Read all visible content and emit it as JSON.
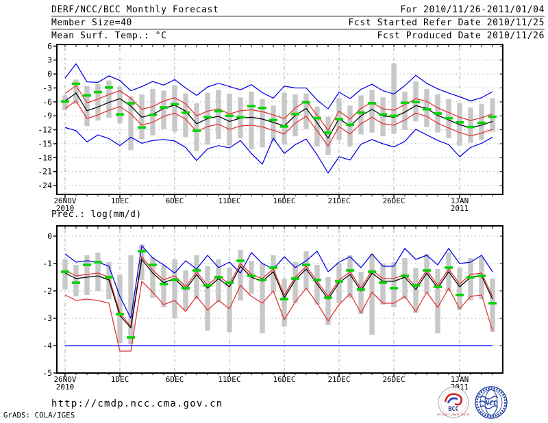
{
  "header": {
    "title": "DERF/NCC/BCC Monthly Forecast",
    "member_size": "Member Size=40",
    "temp_label": "Mean Surf. Temp.: °C",
    "valid_range": "For 2010/11/26-2011/01/04",
    "refer_date": "Fcst Started Refer Date 2010/11/25",
    "produced_date": "Fcst Produced Date 2010/11/26"
  },
  "footer": {
    "url": "http://cmdp.ncc.cma.gov.cn",
    "grads_credit": "GrADS: COLA/IGES",
    "bcc_label": "BCC",
    "bcc_ring_text": "BEIJING CLIMATE CENTER",
    "ncc_label": "NCC"
  },
  "colors": {
    "blue": "#0000e8",
    "red": "#e03030",
    "black": "#000000",
    "green": "#00d400",
    "bar_gray": "#c8c8c8",
    "grid_gray": "#aaaaaa",
    "frame": "#000000"
  },
  "chart_data": [
    {
      "type": "line",
      "title": "Mean Surf. Temp.: °C",
      "n_days": 40,
      "x_tick_labels": [
        "26NOV",
        "1DEC",
        "6DEC",
        "11DEC",
        "16DEC",
        "21DEC",
        "26DEC",
        "1JAN"
      ],
      "x_tick_days": [
        0,
        5,
        10,
        15,
        20,
        25,
        30,
        36
      ],
      "x_year_labels": [
        {
          "day": 0,
          "label": "2010"
        },
        {
          "day": 36,
          "label": "2011"
        }
      ],
      "yticks": [
        6,
        3,
        0,
        -3,
        -6,
        -9,
        -12,
        -15,
        -18,
        -21,
        -24
      ],
      "ylim": [
        -25.9,
        6.35
      ],
      "grid": "dotted",
      "legend": "none",
      "series": [
        {
          "name": "ensemble-max",
          "color": "blue",
          "values": [
            -0.9,
            2.2,
            -1.7,
            -1.8,
            -0.4,
            -1.4,
            -3.6,
            -2.7,
            -1.6,
            -2.4,
            -1.2,
            -3.0,
            -4.6,
            -2.8,
            -2.0,
            -2.7,
            -3.4,
            -2.3,
            -4.0,
            -5.2,
            -2.6,
            -3.0,
            -3.0,
            -5.6,
            -7.5,
            -3.9,
            -5.3,
            -3.3,
            -2.2,
            -3.6,
            -4.3,
            -2.5,
            -0.3,
            -2.0,
            -3.2,
            -4.1,
            -4.9,
            -5.8,
            -5.1,
            -3.8
          ]
        },
        {
          "name": "upper-spread",
          "color": "red",
          "values": [
            -4.2,
            -2.5,
            -6.2,
            -5.4,
            -4.4,
            -3.6,
            -5.2,
            -7.6,
            -7.0,
            -5.8,
            -5.1,
            -6.4,
            -9.0,
            -8.0,
            -7.5,
            -8.6,
            -7.9,
            -7.7,
            -8.1,
            -8.8,
            -9.6,
            -7.3,
            -5.8,
            -8.9,
            -12.1,
            -8.0,
            -9.7,
            -7.4,
            -6.1,
            -7.5,
            -7.8,
            -6.6,
            -5.3,
            -5.9,
            -7.3,
            -8.3,
            -9.3,
            -10.0,
            -9.4,
            -8.6
          ]
        },
        {
          "name": "ensemble-mean",
          "color": "black",
          "values": [
            -5.8,
            -4.1,
            -7.9,
            -7.1,
            -6.1,
            -5.3,
            -6.9,
            -9.3,
            -8.7,
            -7.4,
            -6.7,
            -8.0,
            -10.7,
            -9.6,
            -9.1,
            -10.2,
            -9.5,
            -9.3,
            -9.7,
            -10.4,
            -11.2,
            -8.9,
            -7.4,
            -10.5,
            -13.8,
            -9.6,
            -11.2,
            -9.0,
            -7.6,
            -9.0,
            -9.3,
            -8.2,
            -6.8,
            -7.4,
            -8.9,
            -9.9,
            -10.9,
            -11.6,
            -11.0,
            -10.2
          ]
        },
        {
          "name": "lower-spread",
          "color": "red",
          "values": [
            -7.4,
            -5.8,
            -9.6,
            -8.8,
            -7.8,
            -7.0,
            -8.6,
            -11.0,
            -10.4,
            -9.1,
            -8.4,
            -9.7,
            -12.4,
            -11.3,
            -10.8,
            -11.9,
            -11.2,
            -11.0,
            -11.4,
            -12.1,
            -12.9,
            -10.6,
            -9.1,
            -12.2,
            -15.5,
            -11.3,
            -12.9,
            -10.7,
            -9.3,
            -10.7,
            -11.0,
            -9.9,
            -8.4,
            -9.1,
            -10.6,
            -11.6,
            -12.6,
            -13.3,
            -12.7,
            -11.9
          ]
        },
        {
          "name": "ensemble-min",
          "color": "blue",
          "values": [
            -11.5,
            -12.2,
            -14.6,
            -13.1,
            -13.9,
            -15.4,
            -13.6,
            -14.9,
            -14.3,
            -14.1,
            -14.4,
            -15.8,
            -18.6,
            -16.1,
            -15.4,
            -15.9,
            -14.3,
            -17.1,
            -19.4,
            -13.8,
            -17.1,
            -15.2,
            -14.0,
            -17.4,
            -21.3,
            -17.8,
            -18.5,
            -15.1,
            -14.1,
            -15.0,
            -15.7,
            -14.5,
            -11.9,
            -13.1,
            -14.3,
            -15.2,
            -17.8,
            -15.8,
            -14.9,
            -13.6
          ]
        }
      ],
      "bars": {
        "name": "member-spread-bar",
        "color": "bar_gray",
        "top": [
          -4.6,
          -1.2,
          -2.6,
          -2.2,
          -1.4,
          -2.7,
          -4.8,
          -4.4,
          -3.2,
          -3.6,
          -2.4,
          -4.2,
          -6.3,
          -4.1,
          -3.4,
          -4.2,
          -5.0,
          -3.8,
          -5.4,
          -6.8,
          -4.0,
          -4.4,
          -4.2,
          -7.0,
          -9.2,
          -5.2,
          -6.8,
          -4.6,
          -3.4,
          -5.0,
          2.3,
          -3.8,
          -1.6,
          -3.2,
          -4.4,
          -5.4,
          -6.2,
          -7.2,
          -6.4,
          -5.2
        ],
        "bottom": [
          -7.8,
          -6.4,
          -11.2,
          -10.0,
          -9.4,
          -10.6,
          -16.4,
          -14.0,
          -13.2,
          -11.8,
          -12.4,
          -13.6,
          -16.6,
          -15.2,
          -14.0,
          -15.4,
          -13.8,
          -16.2,
          -15.8,
          -14.6,
          -15.2,
          -13.4,
          -11.8,
          -15.6,
          -17.4,
          -14.2,
          -15.6,
          -13.0,
          -12.6,
          -13.4,
          -12.8,
          -12.0,
          -10.2,
          -11.4,
          -12.6,
          -13.8,
          -15.4,
          -14.8,
          -14.2,
          -12.4
        ]
      },
      "observation": {
        "name": "observation-dash",
        "color": "green",
        "values": [
          -5.9,
          -2.1,
          -4.6,
          -3.9,
          -2.9,
          -8.7,
          -6.3,
          -11.5,
          -8.8,
          -7.2,
          -6.5,
          -8.3,
          -12.2,
          -9.3,
          -8.0,
          -9.0,
          -9.3,
          -6.9,
          -7.3,
          -9.9,
          -11.3,
          -8.6,
          -6.1,
          -9.5,
          -12.6,
          -9.7,
          -10.9,
          -8.3,
          -6.3,
          -8.7,
          -9.0,
          -6.2,
          -6.0,
          -7.6,
          -8.5,
          -9.5,
          -10.4,
          -11.4,
          -10.5,
          -9.2
        ]
      }
    },
    {
      "type": "line",
      "title": "Prec.: log(mm/d)",
      "n_days": 40,
      "x_tick_labels": [
        "26NOV",
        "1DEC",
        "6DEC",
        "11DEC",
        "16DEC",
        "21DEC",
        "26DEC",
        "1JAN"
      ],
      "x_tick_days": [
        0,
        5,
        10,
        15,
        20,
        25,
        30,
        36
      ],
      "x_year_labels": [
        {
          "day": 0,
          "label": "2010"
        },
        {
          "day": 36,
          "label": "2011"
        }
      ],
      "yticks": [
        0,
        -1,
        -2,
        -3,
        -4,
        -5
      ],
      "ylim": [
        -5.0,
        0.375
      ],
      "grid": "dotted",
      "legend": "none",
      "series": [
        {
          "name": "ensemble-max",
          "color": "blue",
          "values": [
            -0.65,
            -0.95,
            -0.9,
            -0.95,
            -1.1,
            -2.2,
            -3.0,
            -0.35,
            -0.8,
            -1.05,
            -1.35,
            -0.9,
            -1.2,
            -0.7,
            -1.15,
            -0.95,
            -1.35,
            -0.6,
            -1.0,
            -1.2,
            -0.75,
            -1.15,
            -0.9,
            -0.55,
            -1.3,
            -0.95,
            -0.75,
            -1.15,
            -0.65,
            -1.1,
            -1.1,
            -0.45,
            -0.85,
            -0.7,
            -1.05,
            -0.45,
            -1.0,
            -0.95,
            -0.7,
            -1.3
          ]
        },
        {
          "name": "upper-spread",
          "color": "red",
          "values": [
            -1.25,
            -1.45,
            -1.4,
            -1.35,
            -1.5,
            -2.8,
            -3.3,
            -0.75,
            -1.25,
            -1.6,
            -1.45,
            -1.85,
            -1.3,
            -1.8,
            -1.45,
            -1.75,
            -1.0,
            -1.4,
            -1.55,
            -1.2,
            -2.15,
            -1.5,
            -1.1,
            -1.65,
            -2.2,
            -1.6,
            -1.3,
            -1.9,
            -1.25,
            -1.55,
            -1.55,
            -1.4,
            -1.85,
            -1.25,
            -1.8,
            -1.2,
            -1.75,
            -1.4,
            -1.35,
            -2.2
          ]
        },
        {
          "name": "ensemble-mean",
          "color": "black",
          "values": [
            -1.35,
            -1.55,
            -1.5,
            -1.45,
            -1.6,
            -2.9,
            -3.35,
            -0.85,
            -1.35,
            -1.7,
            -1.55,
            -1.95,
            -1.4,
            -1.9,
            -1.55,
            -1.85,
            -1.1,
            -1.5,
            -1.65,
            -1.3,
            -2.25,
            -1.6,
            -1.2,
            -1.75,
            -2.3,
            -1.7,
            -1.4,
            -2.0,
            -1.35,
            -1.65,
            -1.65,
            -1.5,
            -1.95,
            -1.35,
            -1.9,
            -1.3,
            -1.85,
            -1.5,
            -1.45,
            -2.3
          ]
        },
        {
          "name": "lower-spread",
          "color": "red",
          "values": [
            -2.15,
            -2.35,
            -2.3,
            -2.35,
            -2.45,
            -4.2,
            -4.2,
            -1.65,
            -2.05,
            -2.5,
            -2.35,
            -2.75,
            -2.2,
            -2.7,
            -2.35,
            -2.65,
            -1.8,
            -2.2,
            -2.45,
            -2.0,
            -3.05,
            -2.4,
            -1.9,
            -2.45,
            -3.1,
            -2.5,
            -2.1,
            -2.8,
            -2.05,
            -2.45,
            -2.45,
            -2.2,
            -2.75,
            -2.05,
            -2.6,
            -1.9,
            -2.65,
            -2.2,
            -2.15,
            -3.45
          ]
        },
        {
          "name": "ensemble-min",
          "color": "blue",
          "values": [
            -4.0,
            -4.0,
            -4.0,
            -4.0,
            -4.0,
            -4.0,
            -4.0,
            -4.0,
            -4.0,
            -4.0,
            -4.0,
            -4.0,
            -4.0,
            -4.0,
            -4.0,
            -4.0,
            -4.0,
            -4.0,
            -4.0,
            -4.0,
            -4.0,
            -4.0,
            -4.0,
            -4.0,
            -4.0,
            -4.0,
            -4.0,
            -4.0,
            -4.0,
            -4.0,
            -4.0,
            -4.0,
            -4.0,
            -4.0,
            -4.0,
            -4.0,
            -4.0,
            -4.0,
            -4.0,
            -4.0
          ]
        }
      ],
      "bars": {
        "name": "member-spread-bar",
        "color": "bar_gray",
        "top": [
          -0.85,
          -1.05,
          -0.7,
          -0.6,
          -0.95,
          -1.4,
          -0.7,
          -0.3,
          -0.75,
          -1.05,
          -0.85,
          -1.25,
          -0.7,
          -1.1,
          -0.85,
          -1.15,
          -0.5,
          -0.9,
          -1.0,
          -0.7,
          -1.55,
          -0.95,
          -0.55,
          -1.05,
          -1.5,
          -1.0,
          -0.7,
          -1.3,
          -0.65,
          -1.0,
          -0.95,
          -0.8,
          -1.15,
          -0.65,
          -1.2,
          -0.6,
          -1.15,
          -0.8,
          -0.75,
          -1.55
        ],
        "bottom": [
          -1.95,
          -2.2,
          -2.15,
          -2.0,
          -2.3,
          -3.9,
          -3.95,
          -1.6,
          -2.25,
          -2.6,
          -3.0,
          -2.7,
          -2.3,
          -3.45,
          -2.4,
          -3.5,
          -2.35,
          -2.1,
          -3.55,
          -2.05,
          -3.3,
          -2.45,
          -1.95,
          -2.5,
          -3.25,
          -2.45,
          -2.25,
          -2.85,
          -3.6,
          -2.5,
          -2.6,
          -2.3,
          -2.8,
          -2.1,
          -3.55,
          -2.0,
          -2.7,
          -2.35,
          -2.3,
          -3.5
        ]
      },
      "observation": {
        "name": "observation-dash",
        "color": "green",
        "values": [
          -1.3,
          -1.7,
          -1.05,
          -0.95,
          -1.5,
          -2.85,
          -3.7,
          -0.55,
          -1.05,
          -1.75,
          -1.6,
          -1.9,
          -1.25,
          -1.8,
          -1.5,
          -1.7,
          -0.9,
          -1.45,
          -1.6,
          -1.15,
          -2.3,
          -1.55,
          -1.05,
          -1.6,
          -2.25,
          -1.65,
          -1.25,
          -1.95,
          -1.3,
          -1.7,
          -1.9,
          -1.45,
          -1.8,
          -1.25,
          -1.85,
          -1.15,
          -2.15,
          -1.5,
          -1.45,
          -2.45
        ]
      }
    }
  ]
}
